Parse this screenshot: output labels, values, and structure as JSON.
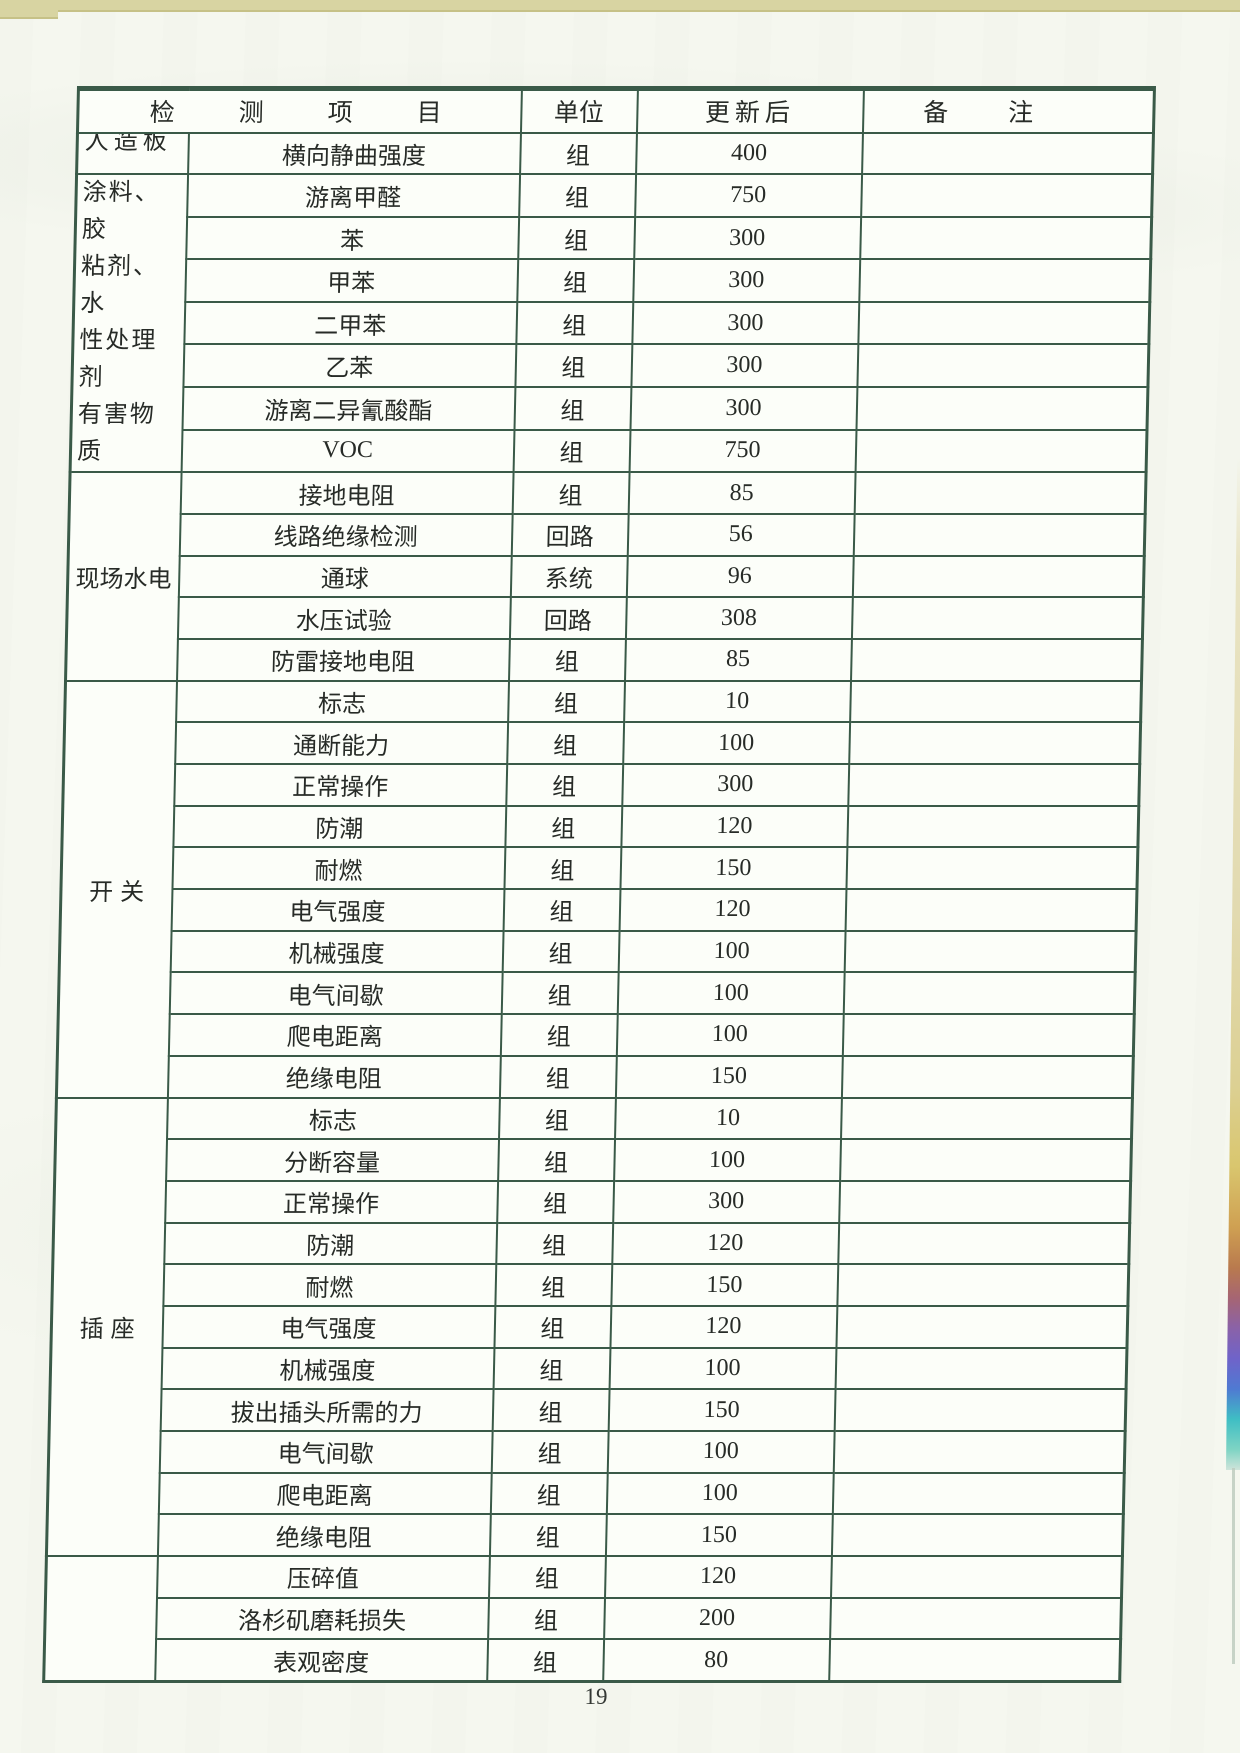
{
  "page": {
    "page_number": "19",
    "colors": {
      "paper": "#f5f7ef",
      "table_bg": "#fcfef9",
      "line": "#3a5a48",
      "text": "#272b27",
      "edge_tan": "#d8d4a2"
    },
    "rainbow_edge_stops": [
      "rgba(238,234,205,0) 0%",
      "#e9e4c4 10%",
      "#e2dab0 45%",
      "#dcd093 62%",
      "#d9c66e 70%",
      "#cfa052 76%",
      "#b97a4e 80%",
      "#a66573 83%",
      "#8a62a8 86%",
      "#6f63c9 89%",
      "#4f7ad2 92%",
      "#3fbec4 95%",
      "#7fd4c4 98%",
      "#cfe4da 100%"
    ]
  },
  "table": {
    "header": {
      "items_group": "检测项目",
      "unit": "单位",
      "updated": "更新后",
      "remark": "备注"
    },
    "sections": [
      {
        "category": "人造板",
        "clipped": true,
        "rows": [
          {
            "item": "横向静曲强度",
            "unit": "组",
            "updated": "400",
            "remark": ""
          }
        ]
      },
      {
        "category": "涂料、胶\n粘剂、水\n性处理剂\n有害物质",
        "rows": [
          {
            "item": "游离甲醛",
            "unit": "组",
            "updated": "750",
            "remark": ""
          },
          {
            "item": "苯",
            "unit": "组",
            "updated": "300",
            "remark": ""
          },
          {
            "item": "甲苯",
            "unit": "组",
            "updated": "300",
            "remark": ""
          },
          {
            "item": "二甲苯",
            "unit": "组",
            "updated": "300",
            "remark": ""
          },
          {
            "item": "乙苯",
            "unit": "组",
            "updated": "300",
            "remark": ""
          },
          {
            "item": "游离二异氰酸酯",
            "unit": "组",
            "updated": "300",
            "remark": ""
          },
          {
            "item": "VOC",
            "unit": "组",
            "updated": "750",
            "remark": ""
          }
        ]
      },
      {
        "category": "现场水电",
        "rows": [
          {
            "item": "接地电阻",
            "unit": "组",
            "updated": "85",
            "remark": ""
          },
          {
            "item": "线路绝缘检测",
            "unit": "回路",
            "updated": "56",
            "remark": ""
          },
          {
            "item": "通球",
            "unit": "系统",
            "updated": "96",
            "remark": ""
          },
          {
            "item": "水压试验",
            "unit": "回路",
            "updated": "308",
            "remark": ""
          },
          {
            "item": "防雷接地电阻",
            "unit": "组",
            "updated": "85",
            "remark": ""
          }
        ]
      },
      {
        "category": "开关",
        "rows": [
          {
            "item": "标志",
            "unit": "组",
            "updated": "10",
            "remark": ""
          },
          {
            "item": "通断能力",
            "unit": "组",
            "updated": "100",
            "remark": ""
          },
          {
            "item": "正常操作",
            "unit": "组",
            "updated": "300",
            "remark": ""
          },
          {
            "item": "防潮",
            "unit": "组",
            "updated": "120",
            "remark": ""
          },
          {
            "item": "耐燃",
            "unit": "组",
            "updated": "150",
            "remark": ""
          },
          {
            "item": "电气强度",
            "unit": "组",
            "updated": "120",
            "remark": ""
          },
          {
            "item": "机械强度",
            "unit": "组",
            "updated": "100",
            "remark": ""
          },
          {
            "item": "电气间歇",
            "unit": "组",
            "updated": "100",
            "remark": ""
          },
          {
            "item": "爬电距离",
            "unit": "组",
            "updated": "100",
            "remark": ""
          },
          {
            "item": "绝缘电阻",
            "unit": "组",
            "updated": "150",
            "remark": ""
          }
        ]
      },
      {
        "category": "插座",
        "rows": [
          {
            "item": "标志",
            "unit": "组",
            "updated": "10",
            "remark": ""
          },
          {
            "item": "分断容量",
            "unit": "组",
            "updated": "100",
            "remark": ""
          },
          {
            "item": "正常操作",
            "unit": "组",
            "updated": "300",
            "remark": ""
          },
          {
            "item": "防潮",
            "unit": "组",
            "updated": "120",
            "remark": ""
          },
          {
            "item": "耐燃",
            "unit": "组",
            "updated": "150",
            "remark": ""
          },
          {
            "item": "电气强度",
            "unit": "组",
            "updated": "120",
            "remark": ""
          },
          {
            "item": "机械强度",
            "unit": "组",
            "updated": "100",
            "remark": ""
          },
          {
            "item": "拔出插头所需的力",
            "unit": "组",
            "updated": "150",
            "remark": ""
          },
          {
            "item": "电气间歇",
            "unit": "组",
            "updated": "100",
            "remark": ""
          },
          {
            "item": "爬电距离",
            "unit": "组",
            "updated": "100",
            "remark": ""
          },
          {
            "item": "绝缘电阻",
            "unit": "组",
            "updated": "150",
            "remark": ""
          }
        ]
      },
      {
        "category": "",
        "rows": [
          {
            "item": "压碎值",
            "unit": "组",
            "updated": "120",
            "remark": ""
          },
          {
            "item": "洛杉矶磨耗损失",
            "unit": "组",
            "updated": "200",
            "remark": ""
          },
          {
            "item": "表观密度",
            "unit": "组",
            "updated": "80",
            "remark": ""
          }
        ]
      }
    ]
  }
}
